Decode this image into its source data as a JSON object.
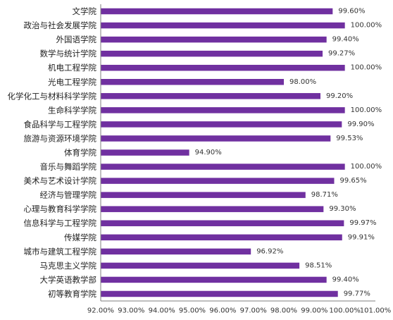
{
  "chart_data": {
    "type": "bar",
    "orientation": "horizontal",
    "title": "",
    "xlabel": "",
    "ylabel": "",
    "xlim": [
      92,
      101
    ],
    "grid": false,
    "legend": "none",
    "bar_color": "#7030a0",
    "x_ticks": [
      "92.00%",
      "93.00%",
      "94.00%",
      "95.00%",
      "96.00%",
      "97.00%",
      "98.00%",
      "99.00%",
      "100.00%",
      "101.00%"
    ],
    "categories": [
      "文学院",
      "政治与社会发展学院",
      "外国语学院",
      "数学与统计学院",
      "机电工程学院",
      "光电工程学院",
      "化学化工与材料科学学院",
      "生命科学学院",
      "食品科学与工程学院",
      "旅游与资源环境学院",
      "体育学院",
      "音乐与舞蹈学院",
      "美术与艺术设计学院",
      "经济与管理学院",
      "心理与教育科学学院",
      "信息科学与工程学院",
      "传媒学院",
      "城市与建筑工程学院",
      "马克思主义学院",
      "大学英语教学部",
      "初等教育学院"
    ],
    "values": [
      99.6,
      100.0,
      99.4,
      99.27,
      100.0,
      98.0,
      99.2,
      100.0,
      99.9,
      99.53,
      94.9,
      100.0,
      99.65,
      98.71,
      99.3,
      99.97,
      99.91,
      96.92,
      98.51,
      99.4,
      99.77
    ],
    "value_labels": [
      "99.60%",
      "100.00%",
      "99.40%",
      "99.27%",
      "100.00%",
      "98.00%",
      "99.20%",
      "100.00%",
      "99.90%",
      "99.53%",
      "94.90%",
      "100.00%",
      "99.65%",
      "98.71%",
      "99.30%",
      "99.97%",
      "99.91%",
      "96.92%",
      "98.51%",
      "99.40%",
      "99.77%"
    ]
  }
}
